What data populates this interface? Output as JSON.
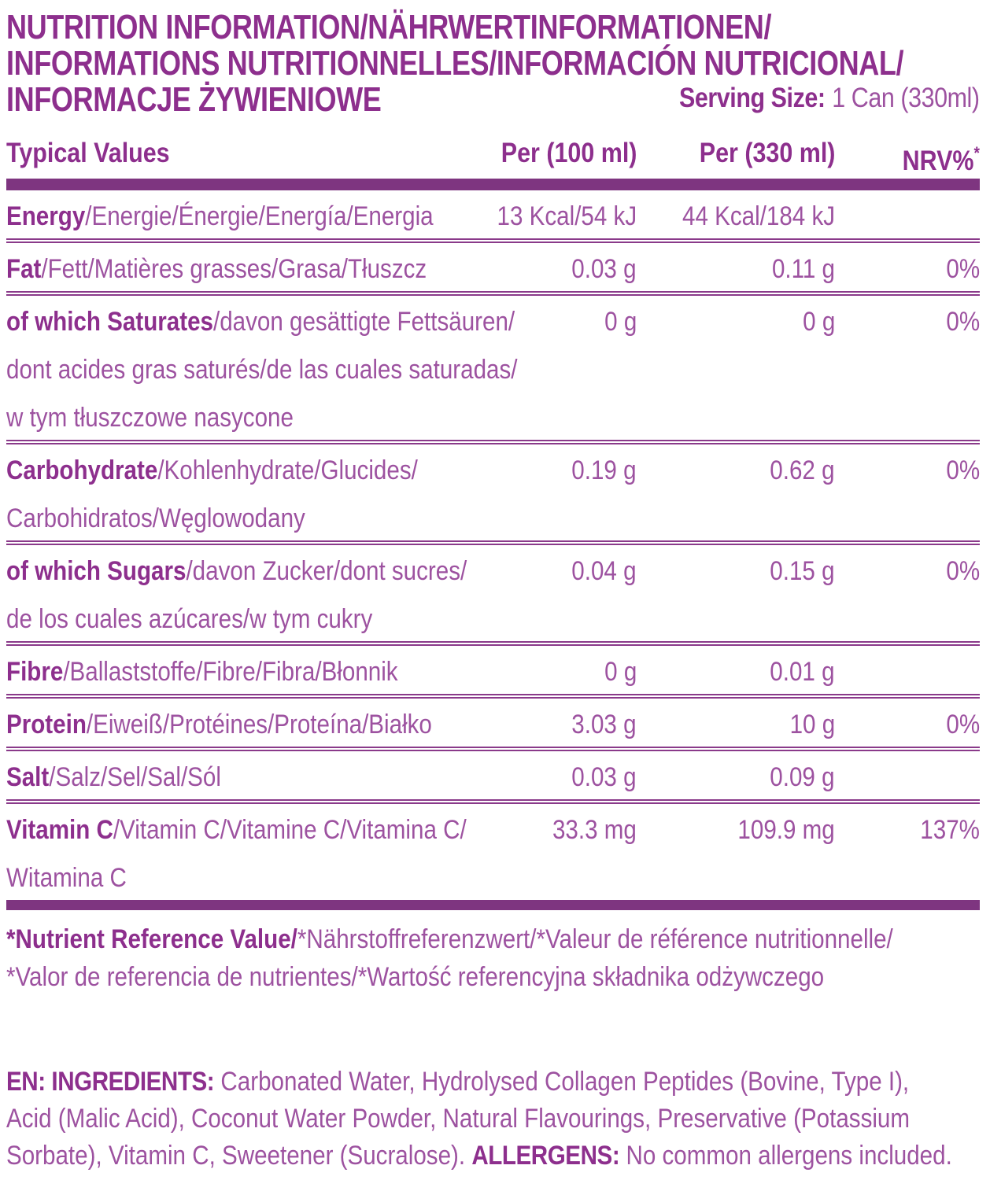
{
  "page": {
    "background": "#ffffff",
    "accent_color": "#953a95",
    "bold_text_color": "#8d2f8d",
    "light_text_color": "#9d52a0",
    "bar_color": "#7e3580"
  },
  "title": {
    "line1": "NUTRITION INFORMATION/NÄHRWERTINFORMATIONEN/",
    "line2": "INFORMATIONS NUTRITIONNELLES/INFORMACIÓN NUTRICIONAL/",
    "line3": "INFORMACJE ŻYWIENIOWE"
  },
  "serving": {
    "label": "Serving Size:",
    "value": "1 Can (330ml)"
  },
  "table": {
    "headers": {
      "typical_values": "Typical Values",
      "per_100": "Per (100 ml)",
      "per_330": "Per (330 ml)",
      "nrv": "NRV%",
      "nrv_sup": "*"
    },
    "rows": [
      {
        "name": "Energy",
        "name_rest": "/Energie/Énergie/Energía/Energia",
        "per_100ml": "13 Kcal/54 kJ",
        "per_330ml": "44 Kcal/184 kJ",
        "nrv": ""
      },
      {
        "name": "Fat",
        "name_rest": "/Fett/Matières grasses/Grasa/Tłuszcz",
        "per_100ml": "0.03 g",
        "per_330ml": "0.11 g",
        "nrv": "0%"
      },
      {
        "name": "of which Saturates",
        "name_rest": "/davon gesättigte Fettsäuren/",
        "per_100ml": "0 g",
        "per_330ml": "0 g",
        "nrv": "0%",
        "continuations": [
          "dont acides gras saturés/de las cuales saturadas/",
          "w tym tłuszczowe nasycone"
        ]
      },
      {
        "name": "Carbohydrate",
        "name_rest": "/Kohlenhydrate/Glucides/",
        "per_100ml": "0.19 g",
        "per_330ml": "0.62 g",
        "nrv": "0%",
        "continuations": [
          "Carbohidratos/Węglowodany"
        ]
      },
      {
        "name": "of which Sugars",
        "name_rest": "/davon Zucker/dont sucres/",
        "per_100ml": "0.04 g",
        "per_330ml": "0.15 g",
        "nrv": "0%",
        "continuations": [
          "de los cuales azúcares/w tym cukry"
        ]
      },
      {
        "name": "Fibre",
        "name_rest": "/Ballaststoffe/Fibre/Fibra/Błonnik",
        "per_100ml": "0 g",
        "per_330ml": "0.01 g",
        "nrv": ""
      },
      {
        "name": "Protein",
        "name_rest": "/Eiweiß/Protéines/Proteína/Białko",
        "per_100ml": "3.03 g",
        "per_330ml": "10 g",
        "nrv": "0%"
      },
      {
        "name": "Salt",
        "name_rest": "/Salz/Sel/Sal/Sól",
        "per_100ml": "0.03 g",
        "per_330ml": "0.09 g",
        "nrv": ""
      },
      {
        "name": "Vitamin C",
        "name_rest": "/Vitamin C/Vitamine C/Vitamina C/",
        "per_100ml": "33.3 mg",
        "per_330ml": "109.9 mg",
        "nrv": "137%",
        "continuations": [
          "Witamina C"
        ]
      }
    ]
  },
  "footnote": {
    "line1_bold": "*Nutrient Reference Value/",
    "line1_rest": "*Nährstoffreferenzwert/*Valeur de référence nutritionnelle/",
    "line2": "*Valor de referencia de nutrientes/*Wartość referencyjna składnika odżywczego"
  },
  "ingredients": {
    "line1_bold": "EN: INGREDIENTS:",
    "line1_rest": " Carbonated Water, Hydrolysed Collagen Peptides (Bovine, Type I),",
    "line2": "Acid (Malic Acid), Coconut Water Powder, Natural Flavourings, Preservative (Potassium",
    "line3_start": "Sorbate), Vitamin C, Sweetener (Sucralose). ",
    "line3_bold": "ALLERGENS:",
    "line3_rest": " No common allergens included."
  }
}
